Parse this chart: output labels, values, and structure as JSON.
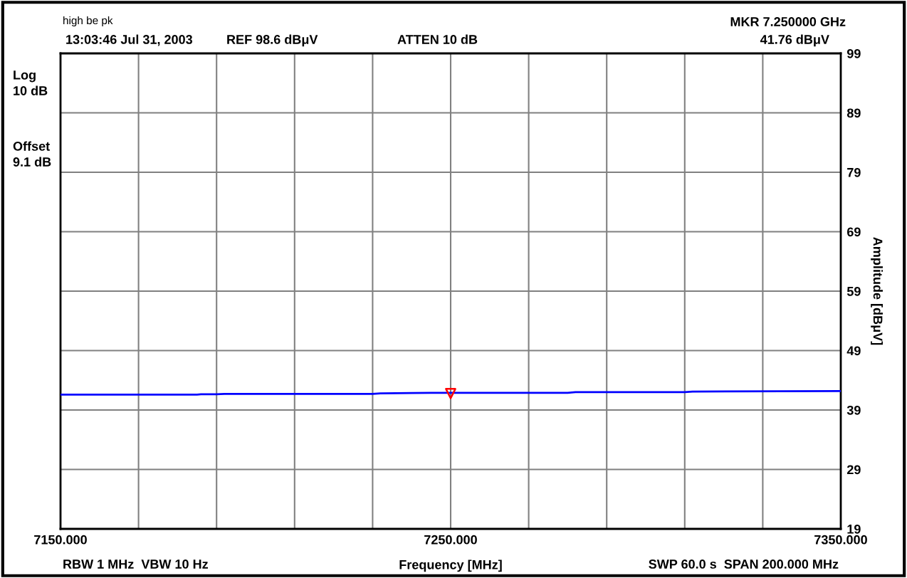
{
  "chart_data": {
    "type": "line",
    "xlabel": "Frequency [MHz]",
    "ylabel": "Amplitude [dBμV]",
    "annotations": [
      "high be pk",
      "13:03:46 Jul 31, 2003",
      "REF 98.6 dBμV",
      "ATTEN 10 dB",
      "MKR 7.250000 GHz",
      "41.76 dBμV",
      "Log\n10 dB",
      "Offset\n9.1 dB",
      "RBW 1 MHz  VBW 10 Hz",
      "SWP 60.0 s  SPAN 200.000 MHz"
    ],
    "series": [
      {
        "color": "#0000ff",
        "x": [
          7150,
          7185,
          7186,
          7190,
          7192,
          7200,
          7230,
          7232,
          7240,
          7245,
          7280,
          7282,
          7310,
          7312,
          7350
        ],
        "values": [
          41.6,
          41.6,
          41.65,
          41.65,
          41.7,
          41.7,
          41.7,
          41.8,
          41.85,
          41.9,
          41.9,
          42.0,
          42.0,
          42.1,
          42.2
        ],
        "marker": "none"
      },
      {
        "type": "scatter",
        "color": "#ff0000",
        "x": [
          7250
        ],
        "values": [
          41.76
        ],
        "marker": "triangle"
      }
    ],
    "xlim": [
      7150,
      7350
    ],
    "xticks": [
      {
        "value": 7150,
        "label": "7150.000"
      },
      {
        "value": 7170,
        "label": null
      },
      {
        "value": 7190,
        "label": null
      },
      {
        "value": 7210,
        "label": null
      },
      {
        "value": 7230,
        "label": null
      },
      {
        "value": 7250,
        "label": "7250.000"
      },
      {
        "value": 7270,
        "label": null
      },
      {
        "value": 7290,
        "label": null
      },
      {
        "value": 7310,
        "label": null
      },
      {
        "value": 7330,
        "label": null
      },
      {
        "value": 7350,
        "label": "7350.000"
      }
    ],
    "ylim": [
      19,
      99
    ],
    "yticks": [
      19,
      29,
      39,
      49,
      59,
      69,
      79,
      89,
      99
    ],
    "grid": true
  }
}
